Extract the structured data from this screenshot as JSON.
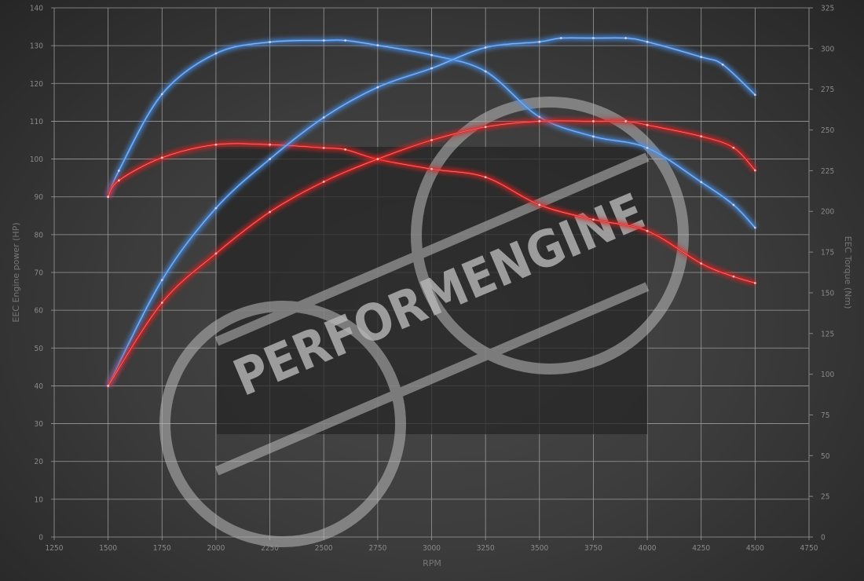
{
  "chart_data": {
    "type": "line",
    "xlabel": "RPM",
    "ylabel_left": "EEC Engine power (HP)",
    "ylabel_right": "EEC Torque (Nm)",
    "xlim": [
      1250,
      4750
    ],
    "ylim_left": [
      0,
      140
    ],
    "ylim_right": [
      0,
      325
    ],
    "x_ticks": [
      1250,
      1500,
      1750,
      2000,
      2250,
      2500,
      2750,
      3000,
      3250,
      3500,
      3750,
      4000,
      4250,
      4500,
      4750
    ],
    "y_left_ticks": [
      0,
      10,
      20,
      30,
      40,
      50,
      60,
      70,
      80,
      90,
      100,
      110,
      120,
      130,
      140
    ],
    "y_right_ticks": [
      0,
      25,
      50,
      75,
      100,
      125,
      150,
      175,
      200,
      225,
      250,
      275,
      300,
      325
    ],
    "grid": true,
    "series": [
      {
        "axis": "right",
        "color": "#4a90e8",
        "x": [
          1500,
          1550,
          1750,
          2000,
          2250,
          2500,
          2600,
          2750,
          3000,
          3250,
          3500,
          3750,
          4000,
          4250,
          4400,
          4500
        ],
        "values": [
          209,
          225,
          272,
          297,
          304,
          305,
          305,
          302,
          296,
          286,
          258,
          246,
          239,
          218,
          204,
          190
        ]
      },
      {
        "axis": "right",
        "color": "#e02020",
        "x": [
          1500,
          1550,
          1750,
          2000,
          2250,
          2500,
          2600,
          2750,
          3000,
          3250,
          3500,
          3750,
          4000,
          4250,
          4400,
          4500
        ],
        "values": [
          209,
          219,
          233,
          241,
          241,
          239,
          238,
          232,
          226,
          221,
          204,
          195,
          188,
          168,
          160,
          156
        ]
      },
      {
        "axis": "left",
        "color": "#4a90e8",
        "x": [
          1500,
          1750,
          2000,
          2250,
          2500,
          2750,
          3000,
          3250,
          3500,
          3600,
          3750,
          3900,
          4000,
          4250,
          4350,
          4500
        ],
        "values": [
          40,
          68,
          87,
          100,
          111,
          119,
          124,
          129.5,
          131,
          132,
          132,
          132,
          131,
          127,
          125,
          117
        ]
      },
      {
        "axis": "left",
        "color": "#e02020",
        "x": [
          1500,
          1750,
          2000,
          2250,
          2500,
          2750,
          3000,
          3250,
          3500,
          3750,
          3900,
          4000,
          4250,
          4400,
          4500
        ],
        "values": [
          40,
          62,
          75,
          86,
          94,
          100,
          105,
          108.5,
          110,
          110,
          110,
          109,
          106,
          103,
          97
        ]
      }
    ]
  },
  "watermark": {
    "text": "PERFORMENGINE"
  }
}
